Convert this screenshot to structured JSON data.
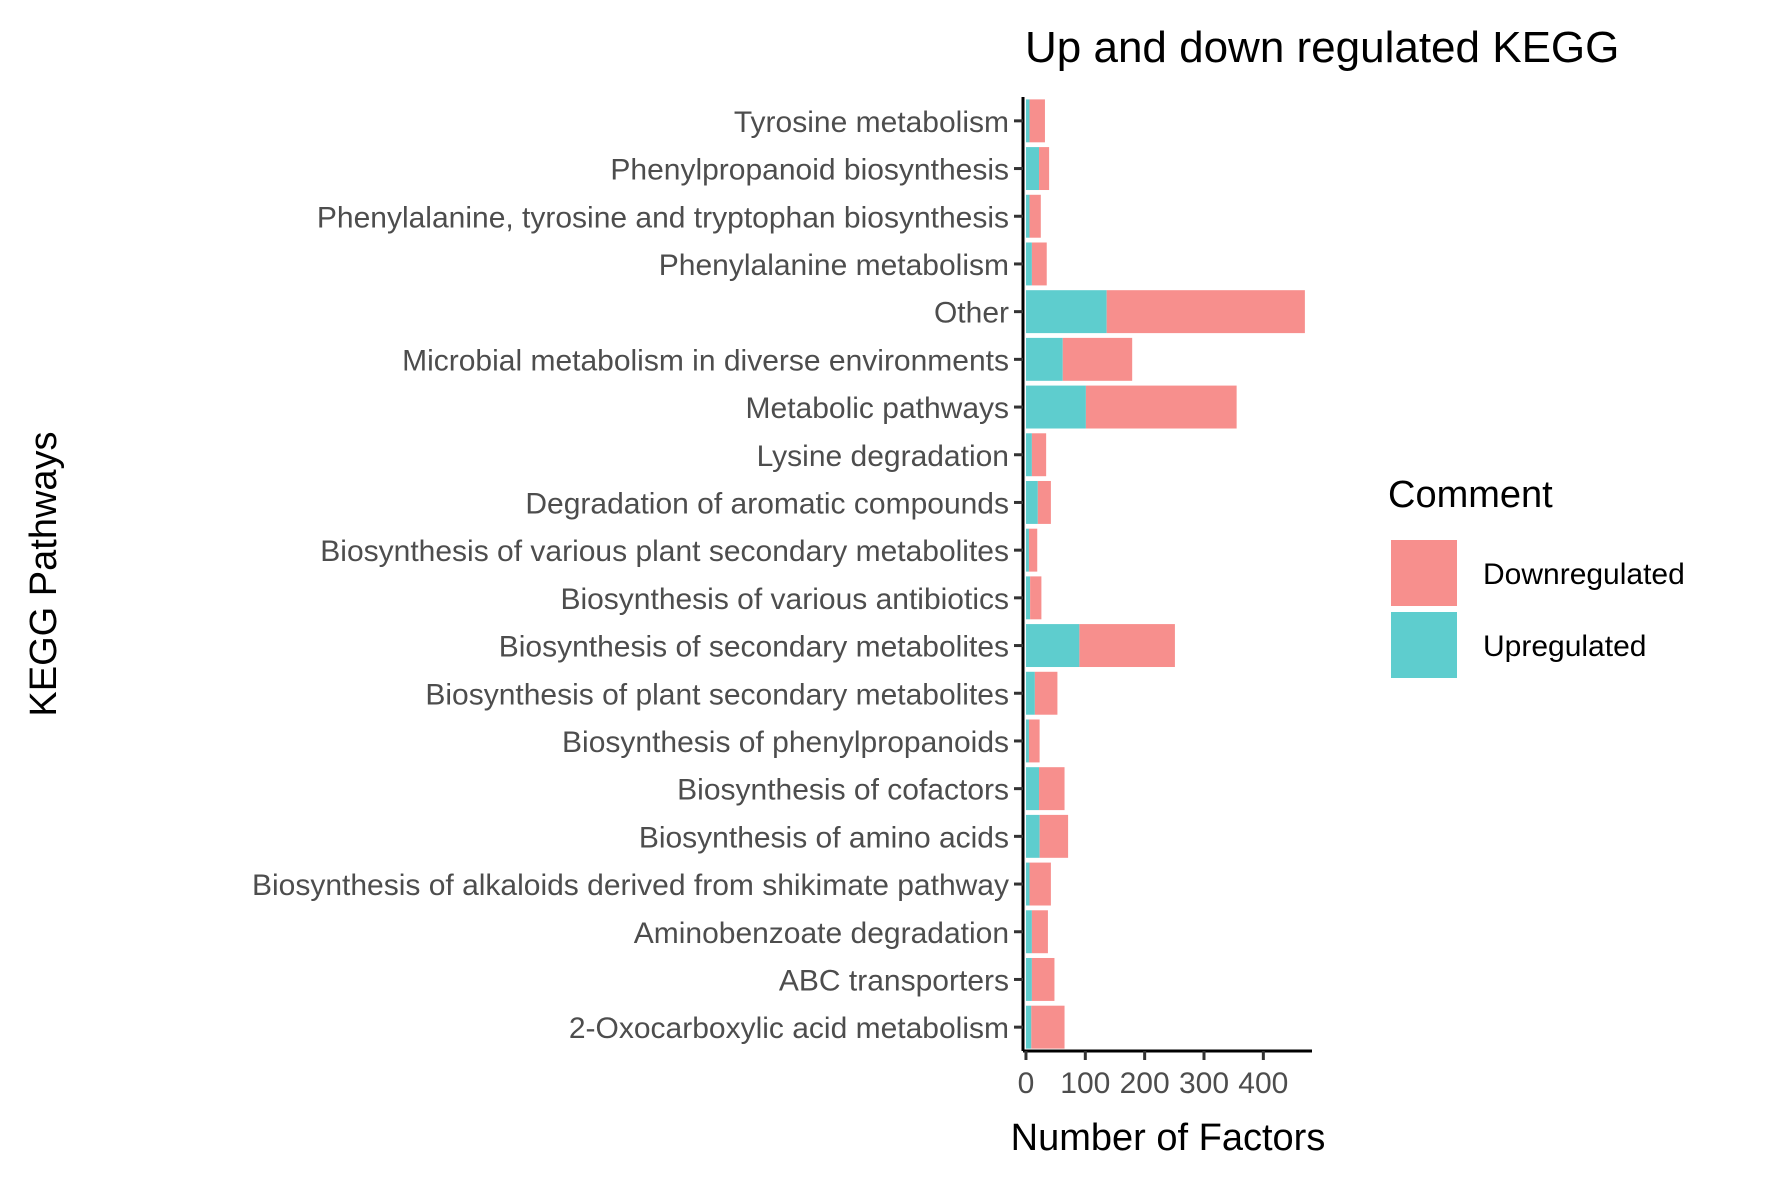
{
  "chart_data": {
    "type": "bar",
    "orientation": "horizontal",
    "stacked": true,
    "title": "Up and down regulated KEGG",
    "xlabel": "Number of Factors",
    "ylabel": "KEGG Pathways",
    "xlim": [
      -5,
      482
    ],
    "xticks": [
      0,
      100,
      200,
      300,
      400
    ],
    "grid": false,
    "legend": {
      "title": "Comment",
      "position": "right"
    },
    "categories": [
      "2-Oxocarboxylic acid metabolism",
      "ABC transporters",
      "Aminobenzoate degradation",
      "Biosynthesis of alkaloids derived from shikimate pathway",
      "Biosynthesis of amino acids",
      "Biosynthesis of cofactors",
      "Biosynthesis of phenylpropanoids",
      "Biosynthesis of plant secondary metabolites",
      "Biosynthesis of secondary metabolites",
      "Biosynthesis of various antibiotics",
      "Biosynthesis of various plant secondary metabolites",
      "Degradation of aromatic compounds",
      "Lysine degradation",
      "Metabolic pathways",
      "Microbial metabolism in diverse environments",
      "Other",
      "Phenylalanine metabolism",
      "Phenylalanine, tyrosine and tryptophan biosynthesis",
      "Phenylpropanoid biosynthesis",
      "Tyrosine metabolism"
    ],
    "series": [
      {
        "name": "Upregulated",
        "color": "#5ecdce",
        "values": [
          9,
          10,
          10,
          6,
          23,
          22,
          5,
          15,
          90,
          7,
          5,
          20,
          10,
          101,
          62,
          136,
          10,
          6,
          22,
          6
        ]
      },
      {
        "name": "Downregulated",
        "color": "#f78f8d",
        "values": [
          56,
          38,
          27,
          36,
          48,
          43,
          18,
          38,
          161,
          19,
          14,
          22,
          24,
          254,
          117,
          334,
          25,
          19,
          17,
          26
        ]
      }
    ]
  }
}
